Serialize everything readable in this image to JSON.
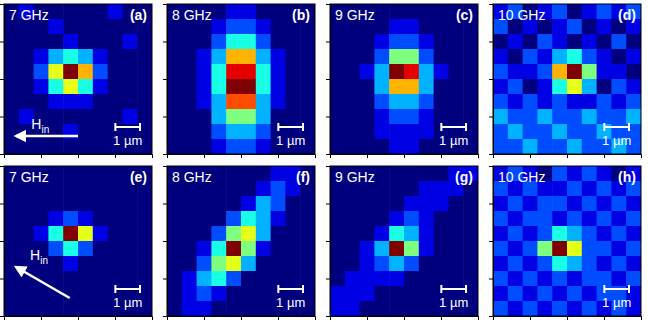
{
  "chart_data": [
    {
      "type": "heatmap",
      "title": "7 GHz",
      "label": "(a)",
      "xlim": [
        0,
        6
      ],
      "ylim": [
        0,
        6
      ],
      "xticks": [
        1.5,
        3,
        4.5
      ],
      "yticks": [
        1.5,
        3,
        4.5
      ],
      "tick_labels": false,
      "scale_bar": {
        "value": 1,
        "label": "1 µm"
      },
      "field": {
        "label": "H",
        "subscript": "in",
        "angle": 180
      },
      "cells": [
        [
          0,
          1,
          0,
          0,
          0,
          0,
          0,
          1,
          0,
          0
        ],
        [
          0,
          0,
          0,
          1,
          0,
          0,
          0,
          0,
          0,
          0
        ],
        [
          0,
          0,
          0,
          0,
          1,
          0,
          0,
          0,
          1,
          0
        ],
        [
          0,
          0,
          1,
          3,
          4,
          3,
          1,
          0,
          0,
          0
        ],
        [
          0,
          0,
          2,
          6,
          10,
          7,
          2,
          0,
          0,
          0
        ],
        [
          0,
          0,
          1,
          4,
          6,
          4,
          1,
          0,
          0,
          0
        ],
        [
          0,
          0,
          0,
          1,
          1,
          1,
          0,
          0,
          0,
          0
        ],
        [
          0,
          1,
          0,
          0,
          0,
          0,
          0,
          0,
          1,
          0
        ],
        [
          0,
          0,
          0,
          0,
          1,
          0,
          0,
          0,
          0,
          0
        ],
        [
          0,
          0,
          0,
          0,
          0,
          0,
          0,
          0,
          0,
          0
        ]
      ]
    },
    {
      "type": "heatmap",
      "title": "8 GHz",
      "label": "(b)",
      "xlim": [
        0,
        6
      ],
      "ylim": [
        0,
        6
      ],
      "xticks": [
        1.5,
        3,
        4.5
      ],
      "yticks": [
        1.5,
        3,
        4.5
      ],
      "tick_labels": false,
      "scale_bar": {
        "value": 1,
        "label": "1 µm"
      },
      "cells": [
        [
          0,
          0,
          0,
          0,
          1,
          1,
          0,
          0,
          0,
          0
        ],
        [
          0,
          0,
          0,
          1,
          2,
          2,
          1,
          0,
          0,
          0
        ],
        [
          0,
          0,
          0,
          2,
          4,
          4,
          2,
          0,
          0,
          0
        ],
        [
          0,
          0,
          1,
          3,
          7,
          7,
          3,
          1,
          0,
          0
        ],
        [
          0,
          0,
          1,
          4,
          9,
          9,
          4,
          1,
          0,
          0
        ],
        [
          0,
          0,
          1,
          4,
          10,
          10,
          4,
          1,
          0,
          0
        ],
        [
          0,
          0,
          1,
          3,
          8,
          8,
          3,
          1,
          0,
          0
        ],
        [
          0,
          0,
          0,
          3,
          5,
          5,
          3,
          0,
          0,
          0
        ],
        [
          0,
          0,
          0,
          2,
          3,
          3,
          2,
          0,
          0,
          0
        ],
        [
          0,
          0,
          0,
          1,
          2,
          2,
          1,
          0,
          0,
          0
        ]
      ]
    },
    {
      "type": "heatmap",
      "title": "9 GHz",
      "label": "(c)",
      "xlim": [
        0,
        6
      ],
      "ylim": [
        0,
        6
      ],
      "xticks": [
        1.5,
        3,
        4.5
      ],
      "yticks": [
        1.5,
        3,
        4.5
      ],
      "tick_labels": false,
      "scale_bar": {
        "value": 1,
        "label": "1 µm"
      },
      "cells": [
        [
          0,
          0,
          0,
          0,
          0,
          0,
          0,
          0,
          0,
          0
        ],
        [
          0,
          0,
          0,
          0,
          1,
          1,
          0,
          0,
          0,
          0
        ],
        [
          0,
          0,
          0,
          1,
          2,
          2,
          1,
          0,
          0,
          0
        ],
        [
          0,
          0,
          0,
          2,
          5,
          5,
          2,
          0,
          0,
          0
        ],
        [
          0,
          0,
          1,
          3,
          10,
          9,
          3,
          1,
          0,
          0
        ],
        [
          0,
          0,
          0,
          3,
          7,
          7,
          3,
          0,
          0,
          0
        ],
        [
          0,
          0,
          0,
          2,
          3,
          3,
          2,
          0,
          0,
          0
        ],
        [
          0,
          0,
          0,
          1,
          2,
          2,
          1,
          0,
          0,
          0
        ],
        [
          0,
          0,
          0,
          1,
          1,
          1,
          1,
          0,
          0,
          0
        ],
        [
          0,
          0,
          0,
          0,
          1,
          1,
          0,
          0,
          0,
          0
        ]
      ]
    },
    {
      "type": "heatmap",
      "title": "10 GHz",
      "label": "(d)",
      "xlim": [
        0,
        6
      ],
      "ylim": [
        0,
        6
      ],
      "xticks": [
        1.5,
        3,
        4.5
      ],
      "yticks": [
        1.5,
        3,
        4.5
      ],
      "tick_labels": false,
      "scale_bar": {
        "value": 1,
        "label": "1 µm"
      },
      "cells": [
        [
          1,
          2,
          0,
          1,
          2,
          0,
          1,
          2,
          1,
          2
        ],
        [
          2,
          0,
          1,
          0,
          1,
          2,
          0,
          1,
          0,
          1
        ],
        [
          0,
          1,
          0,
          2,
          1,
          0,
          1,
          0,
          2,
          0
        ],
        [
          1,
          0,
          2,
          1,
          3,
          4,
          2,
          1,
          0,
          1
        ],
        [
          2,
          1,
          1,
          2,
          7,
          10,
          5,
          1,
          1,
          0
        ],
        [
          1,
          2,
          0,
          1,
          4,
          6,
          3,
          0,
          2,
          1
        ],
        [
          2,
          1,
          2,
          1,
          2,
          1,
          1,
          2,
          1,
          2
        ],
        [
          3,
          2,
          2,
          3,
          2,
          2,
          3,
          2,
          2,
          3
        ],
        [
          2,
          3,
          2,
          2,
          3,
          2,
          2,
          3,
          2,
          2
        ],
        [
          2,
          2,
          3,
          2,
          2,
          3,
          2,
          2,
          3,
          2
        ]
      ]
    },
    {
      "type": "heatmap",
      "title": "7 GHz",
      "label": "(e)",
      "xlim": [
        0,
        6
      ],
      "ylim": [
        0,
        6
      ],
      "xticks": [
        1.5,
        3,
        4.5
      ],
      "yticks": [
        1.5,
        3,
        4.5
      ],
      "tick_labels": false,
      "scale_bar": {
        "value": 1,
        "label": "1 µm"
      },
      "field": {
        "label": "H",
        "subscript": "in",
        "angle": 150
      },
      "cells": [
        [
          0,
          0,
          0,
          0,
          0,
          0,
          0,
          0,
          0,
          0
        ],
        [
          0,
          0,
          0,
          0,
          0,
          0,
          0,
          0,
          0,
          0
        ],
        [
          0,
          0,
          0,
          0,
          0,
          0,
          0,
          0,
          0,
          0
        ],
        [
          0,
          0,
          0,
          1,
          2,
          1,
          0,
          0,
          0,
          0
        ],
        [
          0,
          0,
          1,
          4,
          10,
          6,
          1,
          0,
          0,
          0
        ],
        [
          0,
          0,
          0,
          2,
          4,
          2,
          0,
          0,
          0,
          0
        ],
        [
          0,
          0,
          0,
          0,
          1,
          0,
          0,
          0,
          0,
          0
        ],
        [
          0,
          0,
          0,
          0,
          0,
          0,
          0,
          0,
          0,
          0
        ],
        [
          0,
          0,
          0,
          0,
          0,
          0,
          0,
          0,
          0,
          0
        ],
        [
          0,
          0,
          0,
          0,
          0,
          0,
          0,
          0,
          0,
          0
        ]
      ]
    },
    {
      "type": "heatmap",
      "title": "8 GHz",
      "label": "(f)",
      "xlim": [
        0,
        6
      ],
      "ylim": [
        0,
        6
      ],
      "xticks": [
        1.5,
        3,
        4.5
      ],
      "yticks": [
        1.5,
        3,
        4.5
      ],
      "tick_labels": false,
      "scale_bar": {
        "value": 1,
        "label": "1 µm"
      },
      "cells": [
        [
          0,
          0,
          0,
          0,
          0,
          0,
          0,
          1,
          1,
          0
        ],
        [
          0,
          0,
          0,
          0,
          0,
          0,
          1,
          2,
          1,
          0
        ],
        [
          0,
          0,
          0,
          0,
          0,
          1,
          3,
          2,
          0,
          0
        ],
        [
          0,
          0,
          0,
          0,
          2,
          4,
          3,
          1,
          0,
          0
        ],
        [
          0,
          0,
          0,
          2,
          5,
          6,
          3,
          0,
          0,
          0
        ],
        [
          0,
          0,
          1,
          4,
          10,
          5,
          1,
          0,
          0,
          0
        ],
        [
          0,
          0,
          2,
          5,
          6,
          3,
          0,
          0,
          0,
          0
        ],
        [
          0,
          1,
          3,
          4,
          2,
          0,
          0,
          0,
          0,
          0
        ],
        [
          0,
          1,
          2,
          1,
          0,
          0,
          0,
          0,
          0,
          0
        ],
        [
          0,
          1,
          1,
          0,
          0,
          0,
          0,
          0,
          0,
          0
        ]
      ]
    },
    {
      "type": "heatmap",
      "title": "9 GHz",
      "label": "(g)",
      "xlim": [
        0,
        6
      ],
      "ylim": [
        0,
        6
      ],
      "xticks": [
        1.5,
        3,
        4.5
      ],
      "yticks": [
        1.5,
        3,
        4.5
      ],
      "tick_labels": false,
      "scale_bar": {
        "value": 1,
        "label": "1 µm"
      },
      "cells": [
        [
          0,
          0,
          0,
          0,
          0,
          0,
          0,
          0,
          1,
          1
        ],
        [
          0,
          0,
          0,
          0,
          0,
          0,
          1,
          1,
          1,
          0
        ],
        [
          0,
          0,
          0,
          0,
          0,
          1,
          1,
          1,
          0,
          0
        ],
        [
          0,
          0,
          0,
          0,
          1,
          2,
          1,
          0,
          0,
          0
        ],
        [
          0,
          0,
          0,
          1,
          4,
          3,
          1,
          0,
          0,
          0
        ],
        [
          0,
          0,
          1,
          3,
          10,
          5,
          1,
          0,
          0,
          0
        ],
        [
          0,
          0,
          1,
          2,
          3,
          2,
          0,
          0,
          0,
          0
        ],
        [
          0,
          1,
          1,
          1,
          1,
          0,
          0,
          0,
          0,
          0
        ],
        [
          1,
          1,
          1,
          0,
          0,
          0,
          0,
          0,
          0,
          0
        ],
        [
          1,
          1,
          0,
          0,
          0,
          0,
          0,
          0,
          0,
          0
        ]
      ]
    },
    {
      "type": "heatmap",
      "title": "10 GHz",
      "label": "(h)",
      "xlim": [
        0,
        6
      ],
      "ylim": [
        0,
        6
      ],
      "xticks": [
        1.5,
        3,
        4.5
      ],
      "yticks": [
        1.5,
        3,
        4.5
      ],
      "tick_labels": false,
      "scale_bar": {
        "value": 1,
        "label": "1 µm"
      },
      "cells": [
        [
          1,
          2,
          1,
          0,
          2,
          1,
          2,
          1,
          0,
          1
        ],
        [
          2,
          1,
          2,
          1,
          1,
          2,
          1,
          2,
          1,
          2
        ],
        [
          1,
          2,
          1,
          2,
          2,
          1,
          2,
          1,
          2,
          1
        ],
        [
          2,
          1,
          2,
          2,
          1,
          2,
          1,
          2,
          1,
          2
        ],
        [
          1,
          2,
          1,
          2,
          4,
          3,
          2,
          1,
          2,
          1
        ],
        [
          2,
          1,
          2,
          5,
          10,
          6,
          2,
          2,
          1,
          2
        ],
        [
          1,
          2,
          1,
          2,
          4,
          3,
          2,
          1,
          2,
          1
        ],
        [
          2,
          1,
          2,
          1,
          2,
          1,
          2,
          2,
          1,
          2
        ],
        [
          1,
          2,
          1,
          2,
          1,
          2,
          1,
          2,
          2,
          1
        ],
        [
          2,
          1,
          2,
          1,
          2,
          1,
          2,
          1,
          2,
          1
        ]
      ]
    }
  ]
}
